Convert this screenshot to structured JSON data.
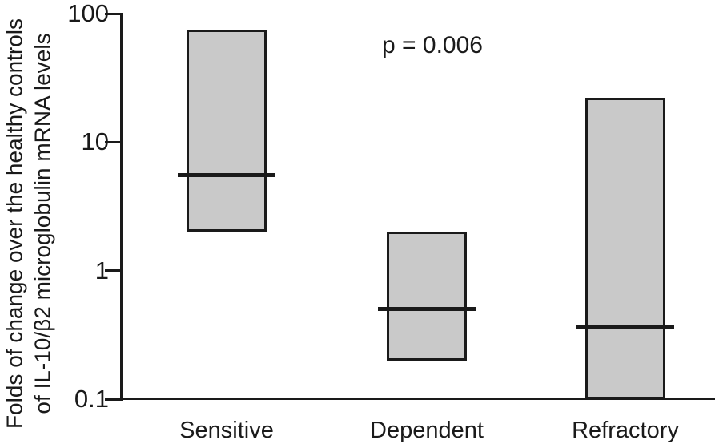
{
  "chart_data": {
    "type": "box",
    "title": "",
    "ylabel_line1": "Folds of change over the healthy controls",
    "ylabel_line2": "of IL-10/β2 microglobulin mRNA levels",
    "yscale": "log",
    "ylim": [
      0.1,
      100
    ],
    "yticks": [
      100,
      10,
      1,
      0.1
    ],
    "ytick_labels": [
      "100",
      "10",
      "1",
      "0.1"
    ],
    "categories": [
      "Sensitive",
      "Dependent",
      "Refractory"
    ],
    "series": [
      {
        "category": "Sensitive",
        "box_low": 2.0,
        "box_high": 75,
        "median": 5.5
      },
      {
        "category": "Dependent",
        "box_low": 0.2,
        "box_high": 2.0,
        "median": 0.5
      },
      {
        "category": "Refractory",
        "box_low": 0.1,
        "box_high": 22,
        "median": 0.36
      }
    ],
    "annotation": "p = 0.006",
    "legend": null,
    "grid": false,
    "colors": {
      "box_fill": "#c9c9c9",
      "box_stroke": "#1a1a1a",
      "axis": "#1a1a1a",
      "background": "#ffffff"
    }
  }
}
